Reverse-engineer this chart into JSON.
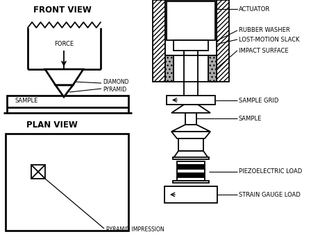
{
  "bg_color": "#ffffff",
  "line_color": "#000000",
  "label_fontsize": 6.0,
  "title_fontsize": 8.5,
  "labels": {
    "front_view": "FRONT VIEW",
    "plan_view": "PLAN VIEW",
    "force": "FORCE",
    "sample_left": "SAMPLE",
    "diamond_pyramid": "DIAMOND\nPYRAMID",
    "pyramid_impression": "PYRAMID IMPRESSION",
    "actuator": "ACTUATOR",
    "rubber_washer": "RUBBER WASHER",
    "lost_motion": "LOST-MOTION SLACK",
    "impact_surface": "IMPACT SURFACE",
    "sample_grid": "SAMPLE GRID",
    "sample_right": "SAMPLE",
    "piezoelectric": "PIEZOELECTRIC LOAD",
    "strain_gauge": "STRAIN GAUGE LOAD"
  }
}
